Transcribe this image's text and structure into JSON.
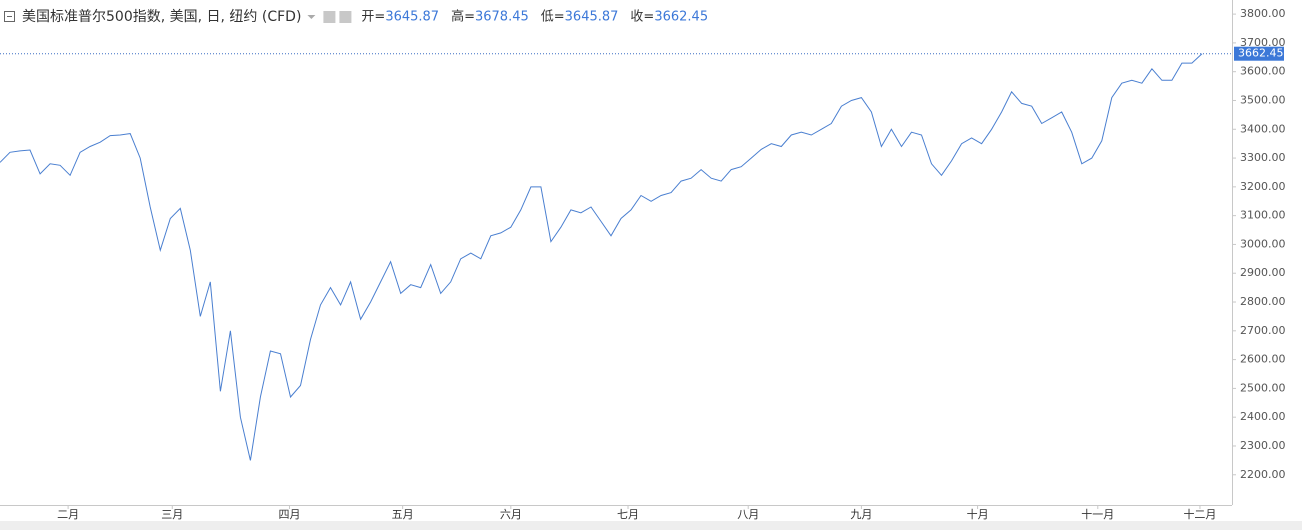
{
  "chart_data": {
    "type": "line",
    "title": "美国标准普尔500指数, 美国, 日, 纽约 (CFD)",
    "ohlc": [
      {
        "label": "开=",
        "value": 3645.87
      },
      {
        "label": "高=",
        "value": 3678.45
      },
      {
        "label": "低=",
        "value": 3645.87
      },
      {
        "label": "收=",
        "value": 3662.45
      }
    ],
    "color": "#4a7fd0",
    "values": [
      3285,
      3320,
      3325,
      3328,
      3245,
      3280,
      3275,
      3240,
      3320,
      3340,
      3355,
      3378,
      3380,
      3385,
      3300,
      3130,
      2980,
      3090,
      3125,
      2980,
      2750,
      2870,
      2490,
      2700,
      2400,
      2250,
      2470,
      2630,
      2620,
      2470,
      2510,
      2670,
      2790,
      2850,
      2790,
      2870,
      2740,
      2800,
      2870,
      2940,
      2830,
      2860,
      2850,
      2930,
      2830,
      2870,
      2950,
      2970,
      2950,
      3030,
      3040,
      3060,
      3120,
      3200,
      3200,
      3010,
      3060,
      3120,
      3110,
      3130,
      3080,
      3030,
      3090,
      3120,
      3170,
      3150,
      3170,
      3180,
      3220,
      3230,
      3260,
      3230,
      3220,
      3260,
      3270,
      3300,
      3330,
      3350,
      3340,
      3380,
      3390,
      3380,
      3400,
      3420,
      3480,
      3500,
      3510,
      3460,
      3340,
      3400,
      3340,
      3390,
      3380,
      3280,
      3240,
      3290,
      3350,
      3370,
      3350,
      3400,
      3460,
      3530,
      3490,
      3480,
      3420,
      3440,
      3460,
      3390,
      3280,
      3300,
      3360,
      3510,
      3560,
      3570,
      3560,
      3610,
      3570,
      3570,
      3630,
      3630,
      3662.45
    ],
    "xlim": [
      0,
      123
    ],
    "xticks": [
      {
        "value": 6.8,
        "label": "二月"
      },
      {
        "value": 17.2,
        "label": "三月"
      },
      {
        "value": 28.9,
        "label": "四月"
      },
      {
        "value": 40.2,
        "label": "五月"
      },
      {
        "value": 51.0,
        "label": "六月"
      },
      {
        "value": 62.7,
        "label": "七月"
      },
      {
        "value": 74.7,
        "label": "八月"
      },
      {
        "value": 86.0,
        "label": "九月"
      },
      {
        "value": 97.6,
        "label": "十月"
      },
      {
        "value": 109.6,
        "label": "十一月"
      },
      {
        "value": 119.8,
        "label": "十二月"
      }
    ],
    "ylim": [
      2095,
      3849
    ],
    "yticks": [
      {
        "value": 2200,
        "label": "2200.00"
      },
      {
        "value": 2300,
        "label": "2300.00"
      },
      {
        "value": 2400,
        "label": "2400.00"
      },
      {
        "value": 2500,
        "label": "2500.00"
      },
      {
        "value": 2600,
        "label": "2600.00"
      },
      {
        "value": 2700,
        "label": "2700.00"
      },
      {
        "value": 2800,
        "label": "2800.00"
      },
      {
        "value": 2900,
        "label": "2900.00"
      },
      {
        "value": 3000,
        "label": "3000.00"
      },
      {
        "value": 3100,
        "label": "3100.00"
      },
      {
        "value": 3200,
        "label": "3200.00"
      },
      {
        "value": 3300,
        "label": "3300.00"
      },
      {
        "value": 3400,
        "label": "3400.00"
      },
      {
        "value": 3500,
        "label": "3500.00"
      },
      {
        "value": 3600,
        "label": "3600.00"
      },
      {
        "value": 3700,
        "label": "3700.00"
      },
      {
        "value": 3800,
        "label": "3800.00"
      }
    ]
  }
}
